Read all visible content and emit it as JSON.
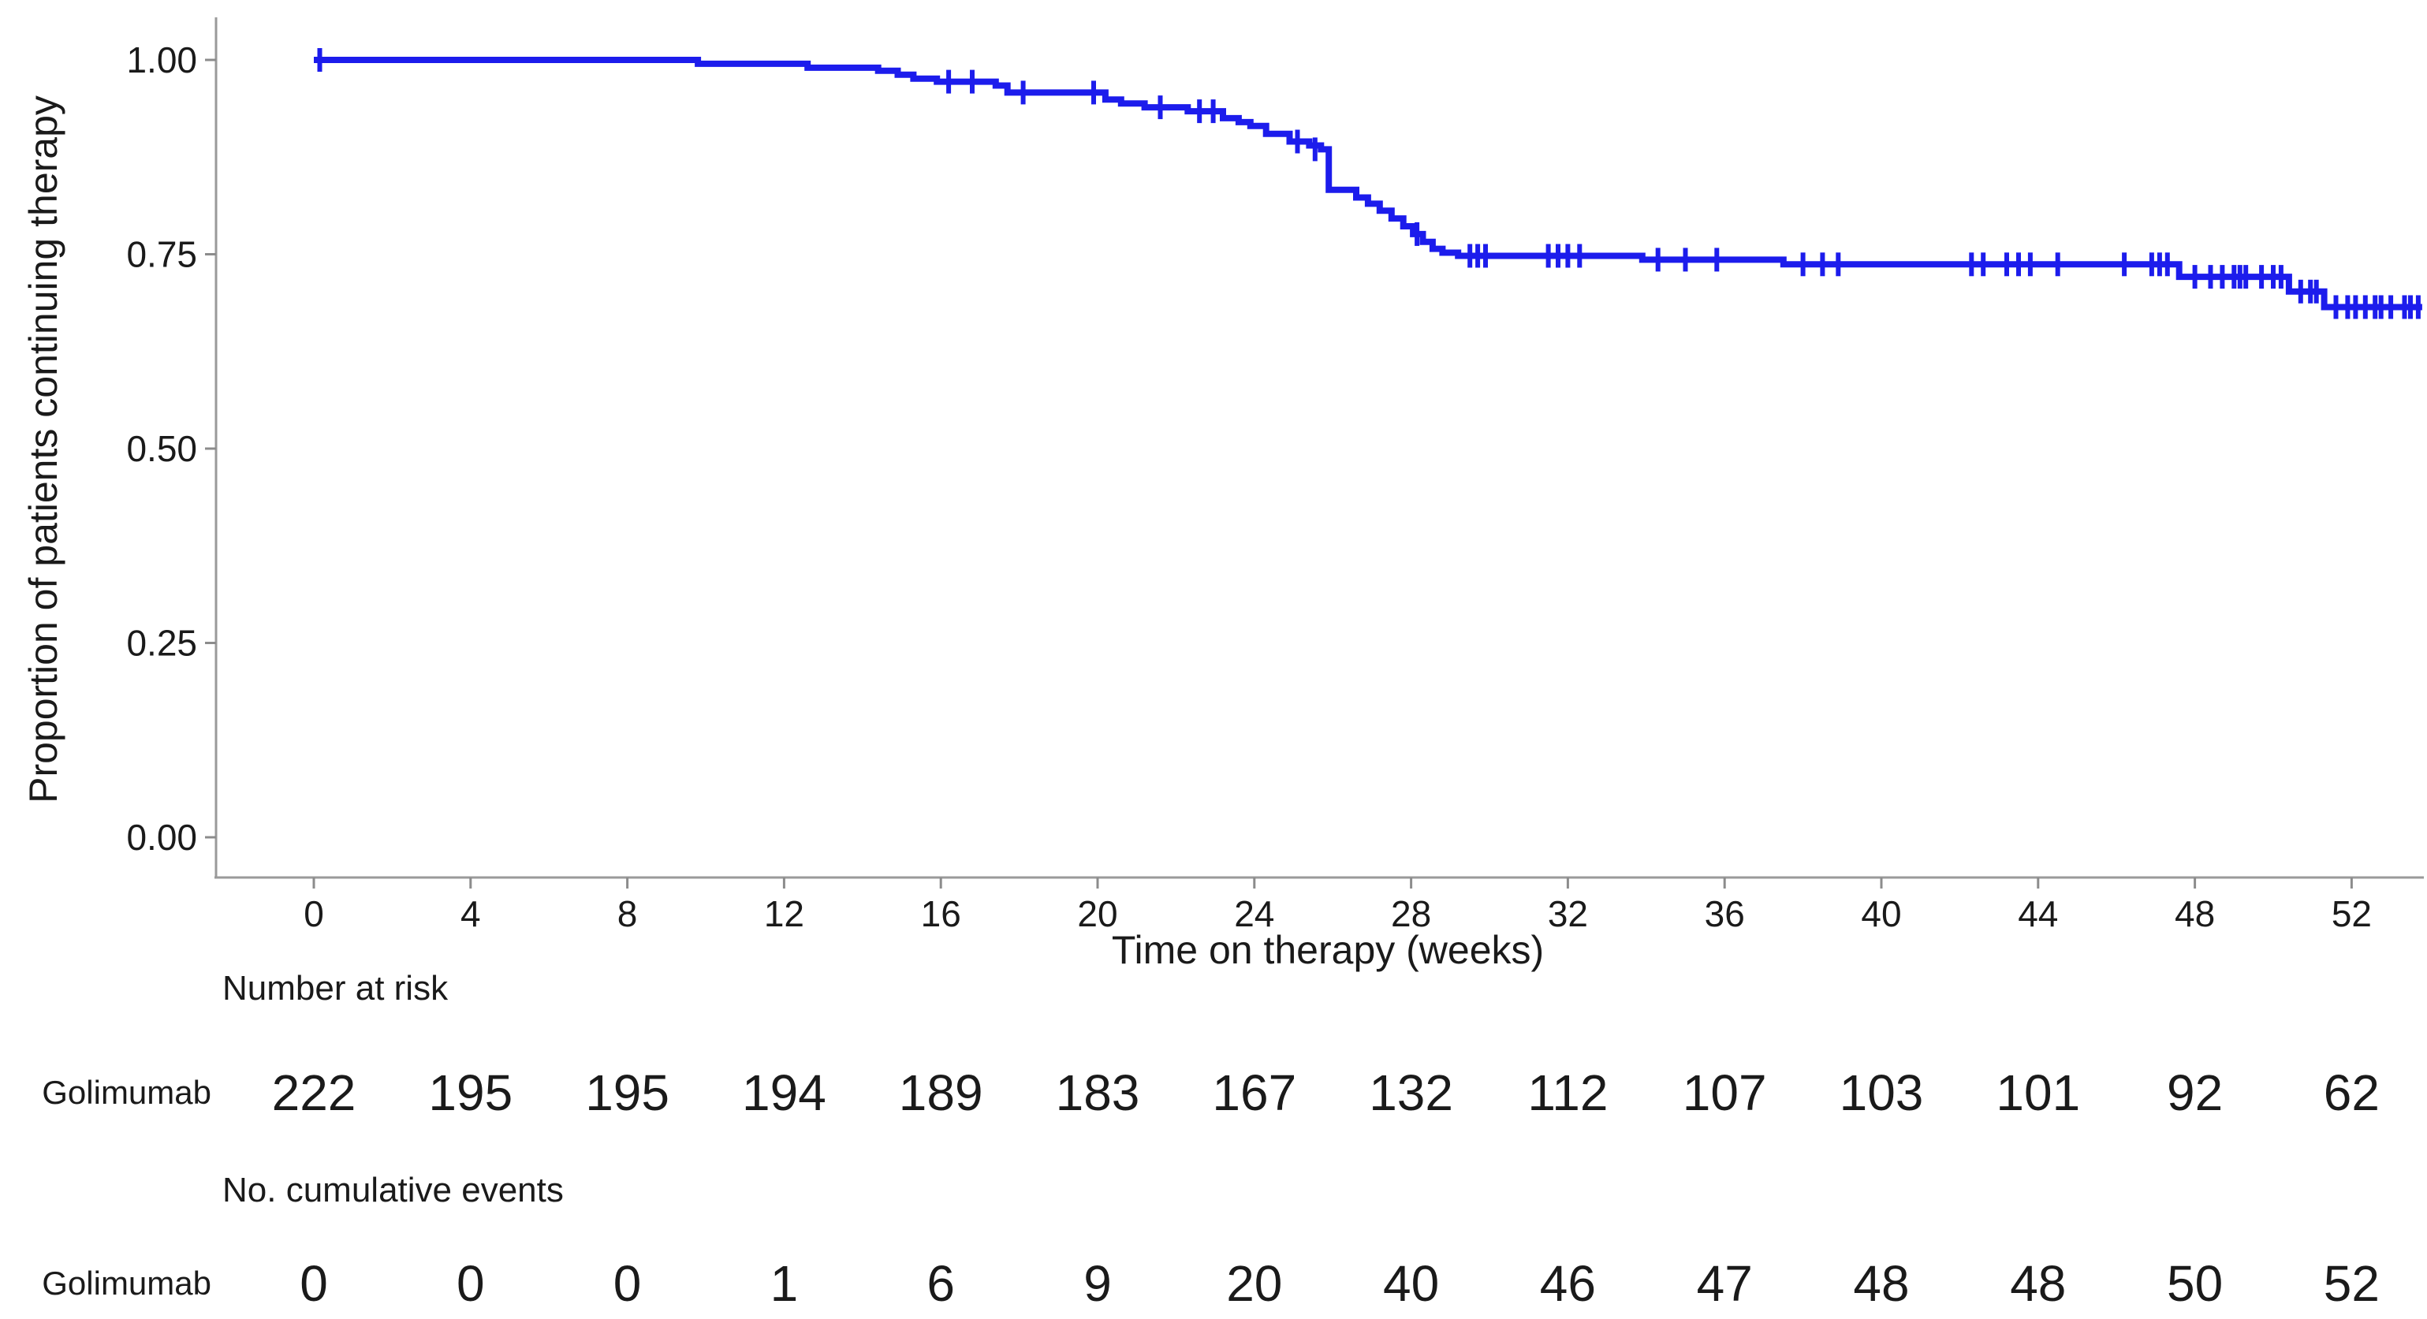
{
  "figure": {
    "y_axis_title": "Proportion of patients continuing therapy",
    "x_axis_title": "Time on therapy (weeks)",
    "risk_heading": "Number at risk",
    "events_heading": "No. cumulative events",
    "series_label": "Golimumab"
  },
  "colors": {
    "curve_blue": "#1c1cec",
    "label_blue": "#4444ee",
    "axis_line": "#9a9a9a",
    "tick_mark": "#8c8c8c",
    "text": "#1a1a1a"
  },
  "chart_data": {
    "type": "line",
    "subtype": "kaplan-meier-step-curve",
    "title": "",
    "xlabel": "Time on therapy (weeks)",
    "ylabel": "Proportion of patients continuing therapy",
    "xlim": [
      0,
      53.8
    ],
    "ylim": [
      0,
      1.0
    ],
    "grid": false,
    "legend_position": "none",
    "x_ticks": [
      0,
      4,
      8,
      12,
      16,
      20,
      24,
      28,
      32,
      36,
      40,
      44,
      48,
      52
    ],
    "y_ticks": [
      {
        "v": 1.0,
        "label": "1.00"
      },
      {
        "v": 0.75,
        "label": "0.75"
      },
      {
        "v": 0.5,
        "label": "0.50"
      },
      {
        "v": 0.25,
        "label": "0.25"
      },
      {
        "v": 0.0,
        "label": "0.00"
      }
    ],
    "series": [
      {
        "name": "Golimumab",
        "end_time": 53.8,
        "steps": [
          [
            0,
            1.0
          ],
          [
            9.8,
            0.995
          ],
          [
            12.6,
            0.99
          ],
          [
            14.4,
            0.986
          ],
          [
            14.9,
            0.981
          ],
          [
            15.3,
            0.976
          ],
          [
            15.9,
            0.972
          ],
          [
            17.4,
            0.967
          ],
          [
            17.7,
            0.958
          ],
          [
            20.2,
            0.949
          ],
          [
            20.6,
            0.944
          ],
          [
            21.2,
            0.939
          ],
          [
            22.3,
            0.934
          ],
          [
            23.2,
            0.925
          ],
          [
            23.6,
            0.92
          ],
          [
            23.9,
            0.915
          ],
          [
            24.3,
            0.905
          ],
          [
            24.9,
            0.895
          ],
          [
            25.4,
            0.89
          ],
          [
            25.7,
            0.885
          ],
          [
            25.9,
            0.833
          ],
          [
            26.6,
            0.823
          ],
          [
            26.9,
            0.815
          ],
          [
            27.2,
            0.806
          ],
          [
            27.5,
            0.796
          ],
          [
            27.8,
            0.786
          ],
          [
            28.05,
            0.776
          ],
          [
            28.3,
            0.766
          ],
          [
            28.55,
            0.757
          ],
          [
            28.8,
            0.752
          ],
          [
            29.2,
            0.748
          ],
          [
            33.9,
            0.743
          ],
          [
            37.5,
            0.737
          ],
          [
            47.6,
            0.721
          ],
          [
            50.4,
            0.702
          ],
          [
            51.3,
            0.682
          ]
        ],
        "censor_marks": [
          [
            0.15,
            1.0
          ],
          [
            16.2,
            0.972
          ],
          [
            16.8,
            0.972
          ],
          [
            18.1,
            0.958
          ],
          [
            19.9,
            0.958
          ],
          [
            21.6,
            0.939
          ],
          [
            22.6,
            0.934
          ],
          [
            22.95,
            0.934
          ],
          [
            25.1,
            0.895
          ],
          [
            25.55,
            0.885
          ],
          [
            28.15,
            0.776
          ],
          [
            29.5,
            0.748
          ],
          [
            29.7,
            0.748
          ],
          [
            29.9,
            0.748
          ],
          [
            31.5,
            0.748
          ],
          [
            31.75,
            0.748
          ],
          [
            32.0,
            0.748
          ],
          [
            32.3,
            0.748
          ],
          [
            34.3,
            0.743
          ],
          [
            35.0,
            0.743
          ],
          [
            35.8,
            0.743
          ],
          [
            38.0,
            0.737
          ],
          [
            38.5,
            0.737
          ],
          [
            38.9,
            0.737
          ],
          [
            42.3,
            0.737
          ],
          [
            42.6,
            0.737
          ],
          [
            43.2,
            0.737
          ],
          [
            43.5,
            0.737
          ],
          [
            43.8,
            0.737
          ],
          [
            44.5,
            0.737
          ],
          [
            46.2,
            0.737
          ],
          [
            46.9,
            0.737
          ],
          [
            47.1,
            0.737
          ],
          [
            47.3,
            0.737
          ],
          [
            48.0,
            0.721
          ],
          [
            48.4,
            0.721
          ],
          [
            48.7,
            0.721
          ],
          [
            49.0,
            0.721
          ],
          [
            49.15,
            0.721
          ],
          [
            49.3,
            0.721
          ],
          [
            49.7,
            0.721
          ],
          [
            50.0,
            0.721
          ],
          [
            50.2,
            0.721
          ],
          [
            50.7,
            0.702
          ],
          [
            50.95,
            0.702
          ],
          [
            51.1,
            0.702
          ],
          [
            51.6,
            0.682
          ],
          [
            51.9,
            0.682
          ],
          [
            52.1,
            0.682
          ],
          [
            52.35,
            0.682
          ],
          [
            52.6,
            0.682
          ],
          [
            52.75,
            0.682
          ],
          [
            53.0,
            0.682
          ],
          [
            53.35,
            0.682
          ],
          [
            53.5,
            0.682
          ],
          [
            53.7,
            0.682
          ]
        ]
      }
    ],
    "number_at_risk": {
      "label": "Golimumab",
      "times": [
        0,
        4,
        8,
        12,
        16,
        20,
        24,
        28,
        32,
        36,
        40,
        44,
        48,
        52
      ],
      "values": [
        222,
        195,
        195,
        194,
        189,
        183,
        167,
        132,
        112,
        107,
        103,
        101,
        92,
        62
      ]
    },
    "cumulative_events": {
      "label": "Golimumab",
      "times": [
        0,
        4,
        8,
        12,
        16,
        20,
        24,
        28,
        32,
        36,
        40,
        44,
        48,
        52
      ],
      "values": [
        0,
        0,
        0,
        1,
        6,
        9,
        20,
        40,
        46,
        47,
        48,
        48,
        50,
        52
      ]
    }
  }
}
